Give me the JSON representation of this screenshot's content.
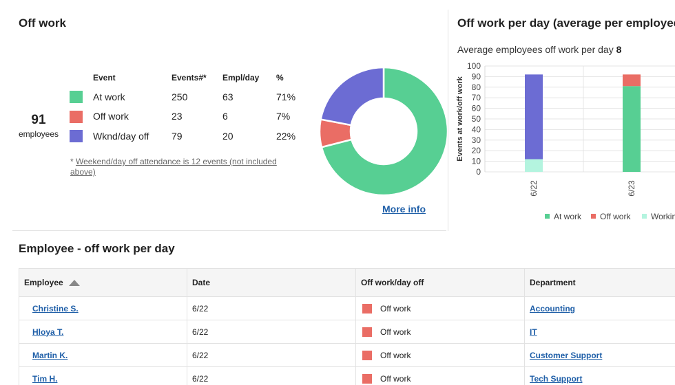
{
  "off_work": {
    "title": "Off work",
    "total": "91",
    "total_label": "employees",
    "headers": {
      "event": "Event",
      "events": "Events#*",
      "empl_day": "Empl/day",
      "pct": "%"
    },
    "rows": [
      {
        "event": "At work",
        "events": "250",
        "empl_day": "63",
        "pct": "71%",
        "color": "#57cf93"
      },
      {
        "event": "Off work",
        "events": "23",
        "empl_day": "6",
        "pct": "7%",
        "color": "#ea6d65"
      },
      {
        "event": "Wknd/day off",
        "events": "79",
        "empl_day": "20",
        "pct": "22%",
        "color": "#6c6cd3"
      }
    ],
    "note_prefix": "* ",
    "note": "Weekend/day off attendance is 12 events (not included above)",
    "more_info": "More info"
  },
  "per_day": {
    "title": "Off work per day (average per employee)",
    "avg_label": "Average employees off work per day",
    "avg_value": "8"
  },
  "chart_data": [
    {
      "type": "pie",
      "labels": [
        "At work",
        "Off work",
        "Wknd/day off"
      ],
      "values": [
        71,
        7,
        22
      ],
      "colors": [
        "#57cf93",
        "#ea6d65",
        "#6c6cd3"
      ]
    },
    {
      "type": "bar",
      "stacked": true,
      "categories": [
        "6/22",
        "6/23"
      ],
      "series": [
        {
          "name": "At work",
          "values": [
            0,
            81
          ],
          "color": "#57cf93"
        },
        {
          "name": "Off work",
          "values": [
            0,
            11
          ],
          "color": "#ea6d65"
        },
        {
          "name": "Working",
          "values": [
            12,
            0
          ],
          "color": "#b4f4df"
        },
        {
          "name": "",
          "values": [
            80,
            0
          ],
          "color": "#6c6cd3"
        }
      ],
      "ylabel": "Events at work/off work",
      "ylim": [
        0,
        100
      ],
      "yticks": [
        0,
        10,
        20,
        30,
        40,
        50,
        60,
        70,
        80,
        90,
        100
      ],
      "legend_labels": [
        "At work",
        "Off work",
        "Workin"
      ],
      "legend_position": "bottom"
    }
  ],
  "employees": {
    "title": "Employee - off work per day",
    "headers": {
      "employee": "Employee",
      "date": "Date",
      "status": "Off work/day off",
      "department": "Department"
    },
    "rows": [
      {
        "employee": "Christine S.",
        "date": "6/22",
        "status": "Off work",
        "department": "Accounting"
      },
      {
        "employee": "Hloya T.",
        "date": "6/22",
        "status": "Off work",
        "department": "IT"
      },
      {
        "employee": "Martin K.",
        "date": "6/22",
        "status": "Off work",
        "department": "Customer Support"
      },
      {
        "employee": "Tim H.",
        "date": "6/22",
        "status": "Off work",
        "department": "Tech Support"
      }
    ],
    "status_color": "#ea6d65"
  }
}
